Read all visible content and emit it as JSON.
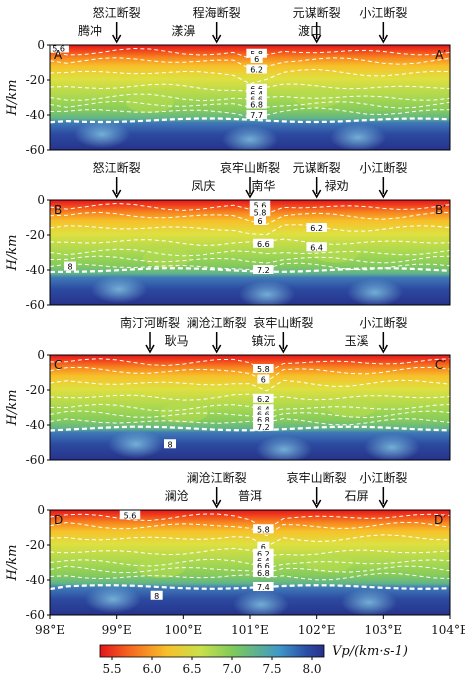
{
  "chart_data": {
    "type": "heatmap",
    "ylabel": "H/km",
    "x_ticks": [
      "98°E",
      "99°E",
      "100°E",
      "101°E",
      "102°E",
      "103°E",
      "104°E"
    ],
    "x_tick_values": [
      98,
      99,
      100,
      101,
      102,
      103,
      104
    ],
    "xlim": [
      98,
      104
    ],
    "ylim": [
      -60,
      0
    ],
    "y_ticks": [
      "0",
      "-20",
      "-40",
      "-60"
    ],
    "y_tick_values": [
      0,
      -20,
      -40,
      -60
    ],
    "colorbar": {
      "label": "Vp/(km·s-1)",
      "ticks": [
        "5.5",
        "6.0",
        "6.5",
        "7.0",
        "7.5",
        "8.0"
      ],
      "tick_values": [
        5.5,
        6.0,
        6.5,
        7.0,
        7.5,
        8.0
      ],
      "range": [
        5.5,
        8.0
      ],
      "colors": [
        "#e3141c",
        "#f5601e",
        "#f7c12a",
        "#c9e04a",
        "#7cc95c",
        "#3f98c8",
        "#2b4ea8",
        "#26308a"
      ]
    },
    "panels": [
      {
        "start": "A",
        "end": "A′",
        "faults": [
          {
            "name": "怒江断裂",
            "lon": 99.0
          },
          {
            "name": "程海断裂",
            "lon": 100.5
          },
          {
            "name": "元谋断裂",
            "lon": 102.0
          },
          {
            "name": "小江断裂",
            "lon": 103.0
          }
        ],
        "places": [
          {
            "name": "腾冲",
            "lon": 98.6
          },
          {
            "name": "漾濞",
            "lon": 100.0
          },
          {
            "name": "渡口",
            "lon": 101.9
          }
        ],
        "contours": [
          {
            "label": "5.6",
            "lon": 98.13,
            "depth": 2
          },
          {
            "label": "5.8",
            "lon": 101.1,
            "depth": 5
          },
          {
            "label": "6",
            "lon": 101.1,
            "depth": 8
          },
          {
            "label": "6.2",
            "lon": 101.1,
            "depth": 14
          },
          {
            "label": "6.6",
            "lon": 101.1,
            "depth": 25
          },
          {
            "label": "6.4",
            "lon": 101.1,
            "depth": 28
          },
          {
            "label": "6.6",
            "lon": 101.1,
            "depth": 31
          },
          {
            "label": "6.8",
            "lon": 101.1,
            "depth": 34
          },
          {
            "label": "7.7",
            "lon": 101.1,
            "depth": 40
          }
        ],
        "moho_depth": 43
      },
      {
        "start": "B",
        "end": "B′",
        "faults": [
          {
            "name": "怒江断裂",
            "lon": 99.0
          },
          {
            "name": "哀牢山断裂",
            "lon": 101.0
          },
          {
            "name": "元谋断裂",
            "lon": 102.0
          },
          {
            "name": "小江断裂",
            "lon": 103.0
          }
        ],
        "places": [
          {
            "name": "凤庆",
            "lon": 100.3
          },
          {
            "name": "南华",
            "lon": 101.2
          },
          {
            "name": "禄劝",
            "lon": 102.3
          }
        ],
        "contours": [
          {
            "label": "5.6",
            "lon": 101.15,
            "depth": 3
          },
          {
            "label": "5.8",
            "lon": 101.15,
            "depth": 7
          },
          {
            "label": "6",
            "lon": 101.15,
            "depth": 12
          },
          {
            "label": "6.2",
            "lon": 102.0,
            "depth": 16
          },
          {
            "label": "6.4",
            "lon": 102.0,
            "depth": 27
          },
          {
            "label": "6.6",
            "lon": 101.2,
            "depth": 25
          },
          {
            "label": "7.2",
            "lon": 101.2,
            "depth": 40
          },
          {
            "label": "8",
            "lon": 98.3,
            "depth": 38
          }
        ],
        "moho_depth": 40
      },
      {
        "start": "C",
        "end": "C′",
        "faults": [
          {
            "name": "南汀河断裂",
            "lon": 99.5
          },
          {
            "name": "澜沧江断裂",
            "lon": 100.5
          },
          {
            "name": "哀牢山断裂",
            "lon": 101.5
          },
          {
            "name": "小江断裂",
            "lon": 103.0
          }
        ],
        "places": [
          {
            "name": "耿马",
            "lon": 99.9
          },
          {
            "name": "镇沅",
            "lon": 101.2
          },
          {
            "name": "玉溪",
            "lon": 102.6
          }
        ],
        "contours": [
          {
            "label": "5.8",
            "lon": 101.2,
            "depth": 8
          },
          {
            "label": "6",
            "lon": 101.2,
            "depth": 14
          },
          {
            "label": "6.2",
            "lon": 101.2,
            "depth": 25
          },
          {
            "label": "6.4",
            "lon": 101.2,
            "depth": 31
          },
          {
            "label": "6.6",
            "lon": 101.2,
            "depth": 34
          },
          {
            "label": "6.8",
            "lon": 101.2,
            "depth": 37
          },
          {
            "label": "7.2",
            "lon": 101.2,
            "depth": 41
          },
          {
            "label": "8",
            "lon": 99.8,
            "depth": 51
          }
        ],
        "moho_depth": 42
      },
      {
        "start": "D",
        "end": "D′",
        "faults": [
          {
            "name": "澜沧江断裂",
            "lon": 100.5
          },
          {
            "name": "哀牢山断裂",
            "lon": 102.0
          },
          {
            "name": "小江断裂",
            "lon": 103.0
          }
        ],
        "places": [
          {
            "name": "澜沧",
            "lon": 99.9
          },
          {
            "name": "普洱",
            "lon": 101.0
          },
          {
            "name": "石屏",
            "lon": 102.6
          }
        ],
        "contours": [
          {
            "label": "5.6",
            "lon": 99.2,
            "depth": 3
          },
          {
            "label": "5.8",
            "lon": 101.2,
            "depth": 11
          },
          {
            "label": "6",
            "lon": 101.2,
            "depth": 21
          },
          {
            "label": "6.2",
            "lon": 101.2,
            "depth": 25
          },
          {
            "label": "6.4",
            "lon": 101.2,
            "depth": 29
          },
          {
            "label": "6.6",
            "lon": 101.2,
            "depth": 32
          },
          {
            "label": "6.8",
            "lon": 101.2,
            "depth": 36
          },
          {
            "label": "7.4",
            "lon": 101.2,
            "depth": 44
          },
          {
            "label": "8",
            "lon": 99.6,
            "depth": 49
          }
        ],
        "moho_depth": 44
      }
    ]
  }
}
